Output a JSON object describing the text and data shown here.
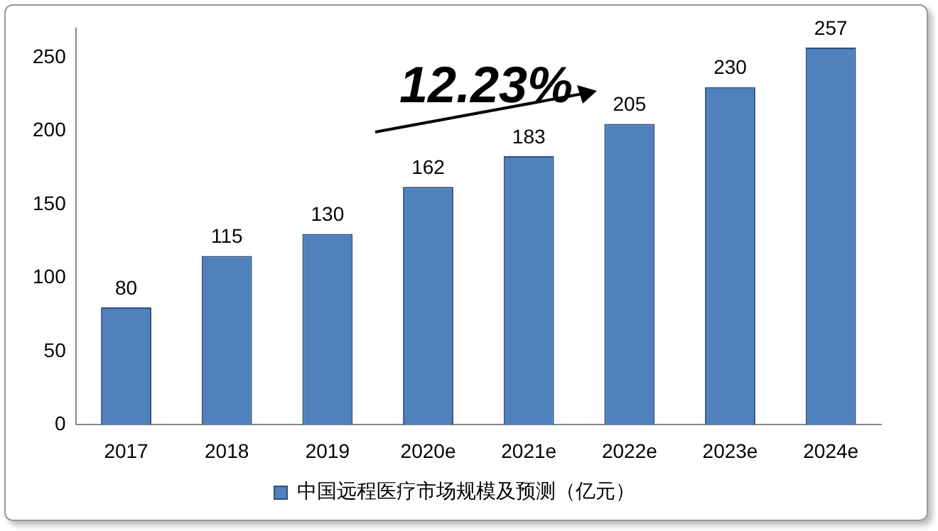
{
  "chart_data": {
    "type": "bar",
    "categories": [
      "2017",
      "2018",
      "2019",
      "2020e",
      "2021e",
      "2022e",
      "2023e",
      "2024e"
    ],
    "series": [
      {
        "name": "中国远程医疗市场规模及预测（亿元）",
        "color": "#4f81bd",
        "values": [
          80,
          115,
          130,
          162,
          183,
          205,
          230,
          257
        ]
      }
    ],
    "ylim": [
      0,
      270
    ],
    "yticks": [
      0,
      50,
      100,
      150,
      200,
      250
    ],
    "grid": false,
    "legend": "bottom",
    "data_labels": true,
    "annotations": [
      "12.23%"
    ]
  }
}
